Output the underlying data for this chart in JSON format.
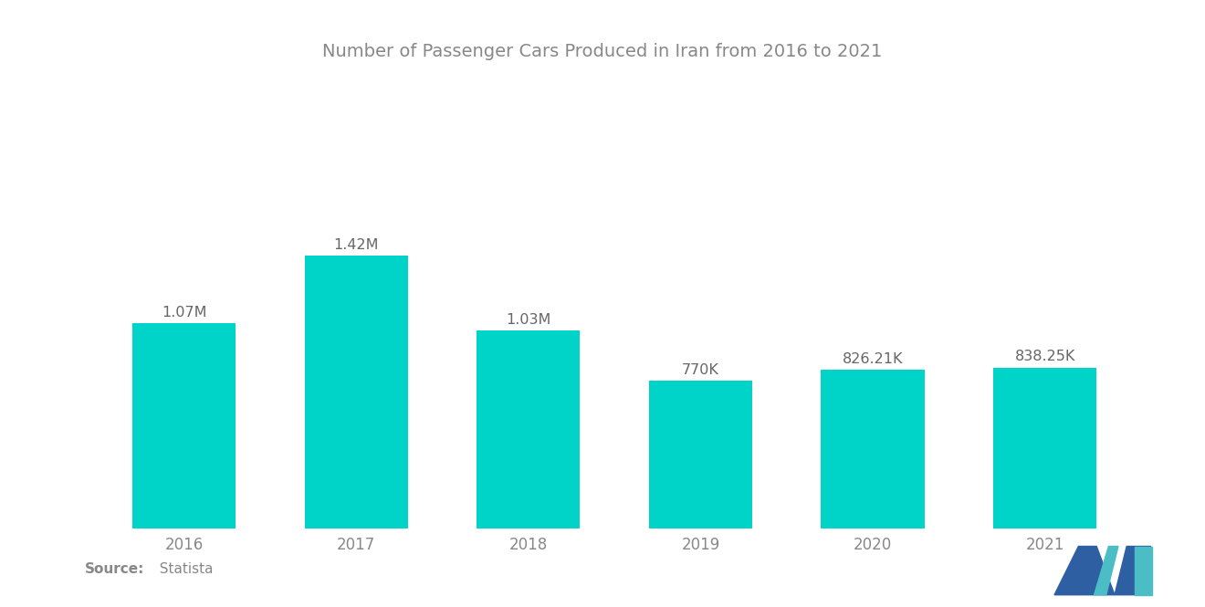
{
  "title": "Number of Passenger Cars Produced in Iran from 2016 to 2021",
  "categories": [
    "2016",
    "2017",
    "2018",
    "2019",
    "2020",
    "2021"
  ],
  "values": [
    1070000,
    1420000,
    1030000,
    770000,
    826210,
    838250
  ],
  "bar_labels": [
    "1.07M",
    "1.42M",
    "1.03M",
    "770K",
    "826.21K",
    "838.25K"
  ],
  "bar_color": "#00D4C8",
  "background_color": "#FFFFFF",
  "title_color": "#888888",
  "label_color": "#666666",
  "tick_color": "#888888",
  "source_bold": "Source:",
  "source_normal": "  Statista",
  "title_fontsize": 14,
  "label_fontsize": 11.5,
  "tick_fontsize": 12,
  "source_fontsize": 11,
  "bar_width": 0.6,
  "ylim": [
    0,
    1900000
  ],
  "logo_left_color": "#2E5FA3",
  "logo_right_color": "#4BBDC4"
}
